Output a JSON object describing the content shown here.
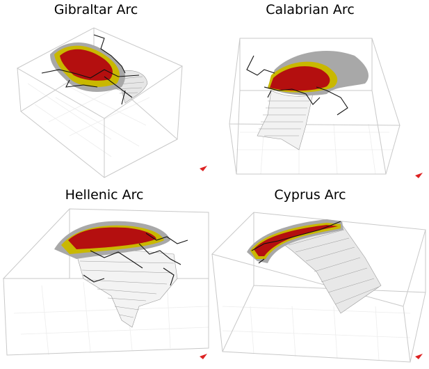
{
  "panels": [
    {
      "title": "Gibraltar Arc"
    },
    {
      "title": "Calabrian Arc"
    },
    {
      "title": "Hellenic Arc"
    },
    {
      "title": "Cyprus Arc"
    }
  ]
}
